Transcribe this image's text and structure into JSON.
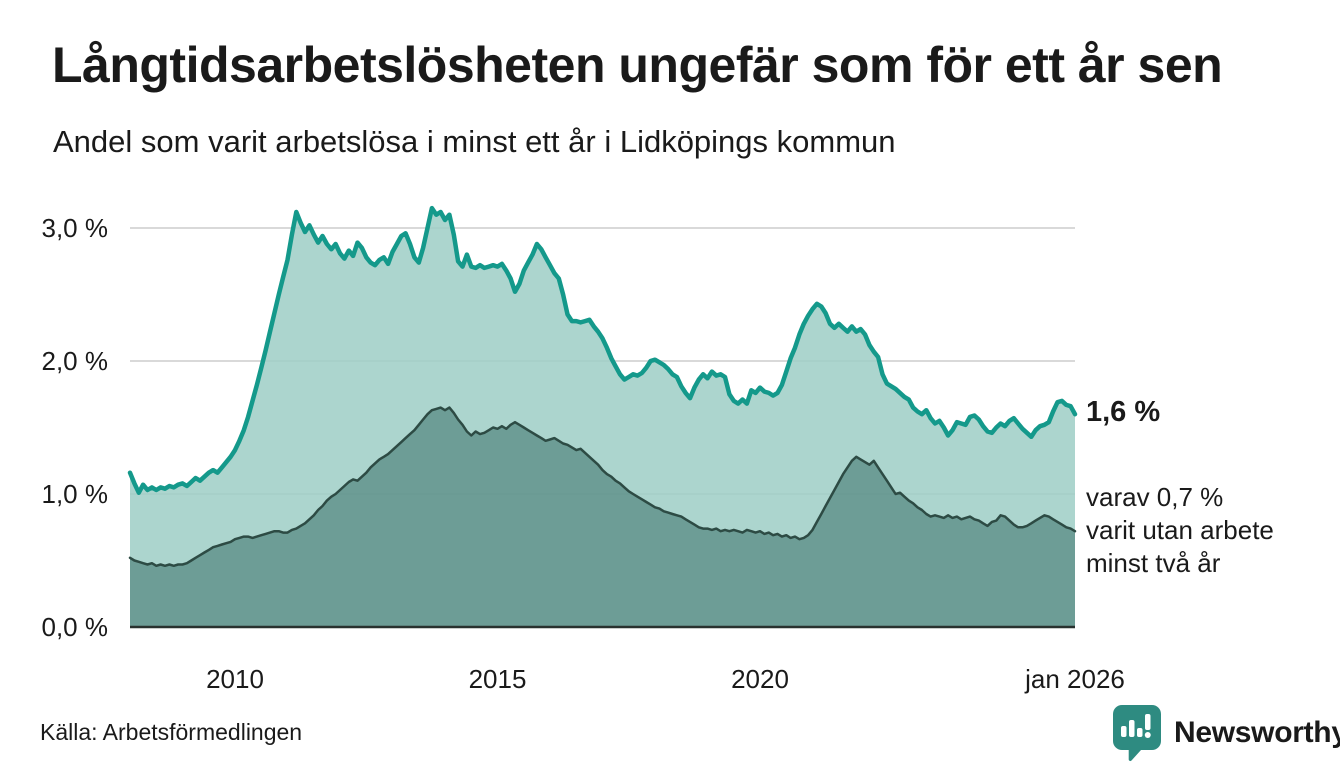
{
  "title": "Långtidsarbetslösheten ungefär som för ett år sen",
  "subtitle": "Andel som varit arbetslösa i minst ett år i Lidköpings kommun",
  "source": "Källa: Arbetsförmedlingen",
  "logo": {
    "wordmark": "Newsworthy",
    "icon": "speech-bubble-bar-chart-icon",
    "color": "#2e8b81"
  },
  "annotations": {
    "end_value_label": "1,6 %",
    "secondary_lines": [
      "varav 0,7 %",
      "varit utan arbete",
      "minst två år"
    ]
  },
  "colors": {
    "text": "#1a1a1a",
    "grid": "#d9d9d9",
    "baseline": "#29322f",
    "series1_line": "#14998b",
    "series1_fill": "rgba(158,206,198,0.85)",
    "series2_line": "#2d4b44",
    "series2_fill": "rgba(59,111,103,0.55)"
  },
  "chart_data": {
    "type": "area",
    "title": "Långtidsarbetslösheten ungefär som för ett år sen",
    "subtitle": "Andel som varit arbetslösa i minst ett år i Lidköpings kommun",
    "unit": "%",
    "frequency": "monthly",
    "x_start": "2008-01",
    "x_end": "2026-01",
    "ylim": [
      0,
      3.3
    ],
    "grid": "horizontal",
    "y_ticks": [
      {
        "label": "3,0 %",
        "value": 3
      },
      {
        "label": "2,0 %",
        "value": 2
      },
      {
        "label": "1,0 %",
        "value": 1
      },
      {
        "label": "0,0 %",
        "value": 0
      }
    ],
    "x_ticks": [
      {
        "label": "2010",
        "month": 24
      },
      {
        "label": "2015",
        "month": 84
      },
      {
        "label": "2020",
        "month": 144
      },
      {
        "label": "jan 2026",
        "month": 216
      }
    ],
    "series": [
      {
        "name": "Arbetslösa minst ett år",
        "end_value": 1.6,
        "end_label": "1,6 %",
        "values": [
          1.16,
          1.08,
          1.01,
          1.07,
          1.03,
          1.05,
          1.03,
          1.05,
          1.04,
          1.06,
          1.05,
          1.07,
          1.08,
          1.06,
          1.09,
          1.12,
          1.1,
          1.13,
          1.16,
          1.18,
          1.16,
          1.2,
          1.24,
          1.28,
          1.33,
          1.4,
          1.48,
          1.58,
          1.7,
          1.82,
          1.95,
          2.08,
          2.22,
          2.36,
          2.5,
          2.63,
          2.76,
          2.95,
          3.12,
          3.04,
          2.97,
          3.02,
          2.95,
          2.89,
          2.94,
          2.88,
          2.84,
          2.88,
          2.81,
          2.77,
          2.83,
          2.79,
          2.89,
          2.85,
          2.78,
          2.74,
          2.72,
          2.76,
          2.78,
          2.73,
          2.82,
          2.88,
          2.94,
          2.96,
          2.88,
          2.78,
          2.74,
          2.85,
          3.0,
          3.15,
          3.1,
          3.12,
          3.06,
          3.1,
          2.95,
          2.75,
          2.71,
          2.8,
          2.71,
          2.7,
          2.72,
          2.7,
          2.71,
          2.72,
          2.71,
          2.73,
          2.68,
          2.62,
          2.52,
          2.58,
          2.68,
          2.74,
          2.8,
          2.88,
          2.84,
          2.78,
          2.72,
          2.66,
          2.62,
          2.5,
          2.35,
          2.3,
          2.3,
          2.29,
          2.3,
          2.31,
          2.26,
          2.22,
          2.17,
          2.1,
          2.02,
          1.96,
          1.9,
          1.86,
          1.88,
          1.9,
          1.89,
          1.91,
          1.95,
          2.0,
          2.01,
          1.99,
          1.97,
          1.94,
          1.9,
          1.88,
          1.81,
          1.76,
          1.72,
          1.8,
          1.86,
          1.9,
          1.87,
          1.92,
          1.89,
          1.9,
          1.88,
          1.75,
          1.7,
          1.68,
          1.71,
          1.68,
          1.78,
          1.76,
          1.8,
          1.77,
          1.76,
          1.74,
          1.76,
          1.82,
          1.92,
          2.02,
          2.1,
          2.2,
          2.28,
          2.34,
          2.39,
          2.43,
          2.41,
          2.36,
          2.28,
          2.25,
          2.28,
          2.25,
          2.22,
          2.26,
          2.22,
          2.24,
          2.2,
          2.12,
          2.07,
          2.03,
          1.9,
          1.83,
          1.81,
          1.79,
          1.76,
          1.73,
          1.71,
          1.65,
          1.62,
          1.6,
          1.63,
          1.57,
          1.53,
          1.55,
          1.5,
          1.44,
          1.48,
          1.54,
          1.53,
          1.52,
          1.58,
          1.59,
          1.56,
          1.51,
          1.47,
          1.46,
          1.5,
          1.53,
          1.51,
          1.55,
          1.57,
          1.53,
          1.49,
          1.46,
          1.43,
          1.48,
          1.51,
          1.52,
          1.54,
          1.62,
          1.69,
          1.7,
          1.67,
          1.66,
          1.6
        ]
      },
      {
        "name": "varav utan arbete minst två år",
        "end_value": 0.7,
        "end_label": "varav 0,7 % varit utan arbete minst två år",
        "values": [
          0.52,
          0.5,
          0.49,
          0.48,
          0.47,
          0.48,
          0.46,
          0.47,
          0.46,
          0.47,
          0.46,
          0.47,
          0.47,
          0.48,
          0.5,
          0.52,
          0.54,
          0.56,
          0.58,
          0.6,
          0.61,
          0.62,
          0.63,
          0.64,
          0.66,
          0.67,
          0.68,
          0.68,
          0.67,
          0.68,
          0.69,
          0.7,
          0.71,
          0.72,
          0.72,
          0.71,
          0.71,
          0.73,
          0.74,
          0.76,
          0.78,
          0.81,
          0.84,
          0.88,
          0.91,
          0.95,
          0.98,
          1.0,
          1.03,
          1.06,
          1.09,
          1.11,
          1.1,
          1.13,
          1.16,
          1.2,
          1.23,
          1.26,
          1.28,
          1.3,
          1.33,
          1.36,
          1.39,
          1.42,
          1.45,
          1.48,
          1.52,
          1.56,
          1.6,
          1.63,
          1.64,
          1.65,
          1.63,
          1.65,
          1.61,
          1.56,
          1.52,
          1.47,
          1.44,
          1.47,
          1.45,
          1.46,
          1.48,
          1.5,
          1.49,
          1.51,
          1.49,
          1.52,
          1.54,
          1.52,
          1.5,
          1.48,
          1.46,
          1.44,
          1.42,
          1.4,
          1.41,
          1.42,
          1.4,
          1.38,
          1.37,
          1.35,
          1.33,
          1.34,
          1.31,
          1.28,
          1.25,
          1.22,
          1.18,
          1.15,
          1.13,
          1.1,
          1.08,
          1.05,
          1.02,
          1.0,
          0.98,
          0.96,
          0.94,
          0.92,
          0.9,
          0.89,
          0.87,
          0.86,
          0.85,
          0.84,
          0.83,
          0.81,
          0.79,
          0.77,
          0.75,
          0.74,
          0.74,
          0.73,
          0.74,
          0.72,
          0.73,
          0.72,
          0.73,
          0.72,
          0.71,
          0.73,
          0.72,
          0.71,
          0.72,
          0.7,
          0.71,
          0.69,
          0.7,
          0.68,
          0.69,
          0.67,
          0.68,
          0.66,
          0.67,
          0.69,
          0.73,
          0.79,
          0.85,
          0.91,
          0.97,
          1.03,
          1.09,
          1.15,
          1.2,
          1.25,
          1.28,
          1.26,
          1.24,
          1.22,
          1.25,
          1.2,
          1.15,
          1.1,
          1.05,
          1.0,
          1.01,
          0.98,
          0.95,
          0.93,
          0.9,
          0.88,
          0.85,
          0.83,
          0.84,
          0.83,
          0.82,
          0.84,
          0.82,
          0.83,
          0.81,
          0.82,
          0.83,
          0.81,
          0.8,
          0.78,
          0.76,
          0.79,
          0.8,
          0.84,
          0.83,
          0.8,
          0.77,
          0.75,
          0.75,
          0.76,
          0.78,
          0.8,
          0.82,
          0.84,
          0.83,
          0.81,
          0.79,
          0.77,
          0.75,
          0.74,
          0.72
        ]
      }
    ]
  }
}
